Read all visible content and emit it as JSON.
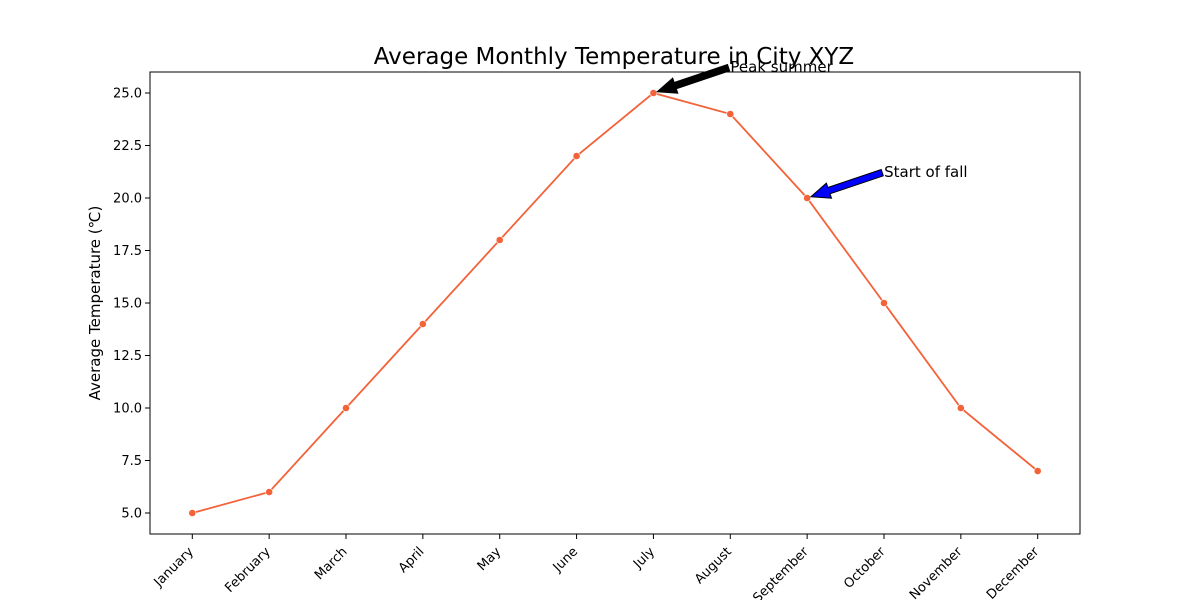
{
  "chart_data": {
    "type": "line",
    "title": "Average Monthly Temperature in City XYZ",
    "xlabel": "",
    "ylabel": "Average Temperature (℃)",
    "categories": [
      "January",
      "February",
      "March",
      "April",
      "May",
      "June",
      "July",
      "August",
      "September",
      "October",
      "November",
      "December"
    ],
    "series": [
      {
        "values": [
          5,
          6,
          10,
          14,
          18,
          22,
          25,
          24,
          20,
          15,
          10,
          7
        ],
        "color": "#f4623a",
        "marker": "circle"
      }
    ],
    "ylim": [
      4,
      26
    ],
    "yticks": [
      "5.0",
      "7.5",
      "10.0",
      "12.5",
      "15.0",
      "17.5",
      "20.0",
      "22.5",
      "25.0"
    ],
    "grid": false,
    "annotations": [
      {
        "text": "Peak summer",
        "category": "July",
        "value": 25,
        "arrow_color": "#000000"
      },
      {
        "text": "Start of fall",
        "category": "September",
        "value": 20,
        "arrow_color": "#0000ff"
      }
    ]
  }
}
